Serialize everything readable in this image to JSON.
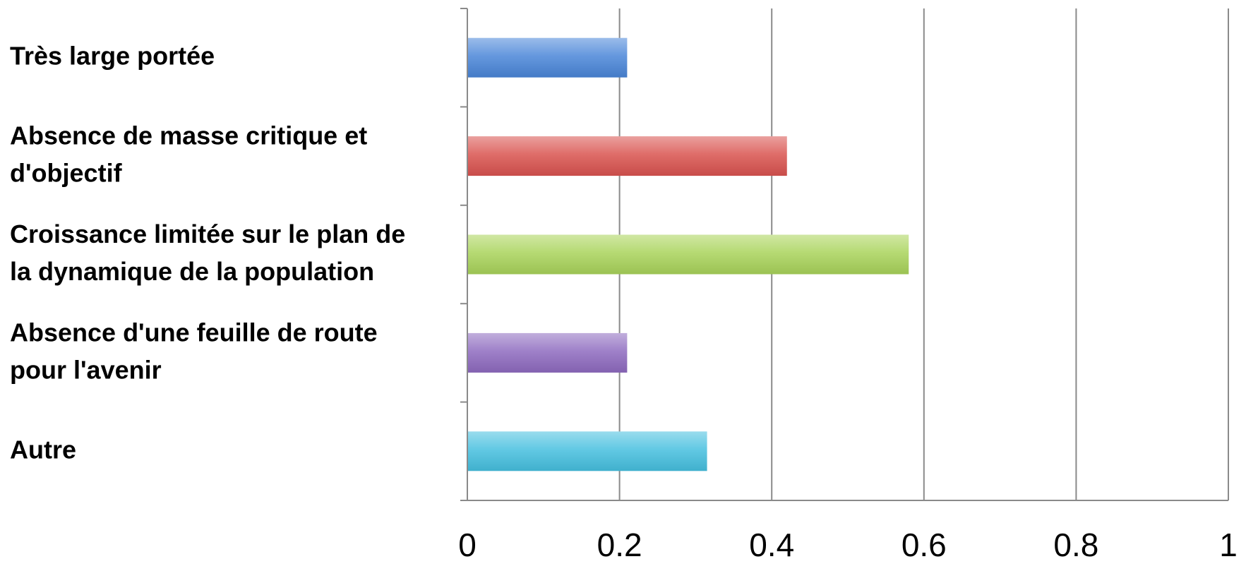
{
  "chart_data": {
    "type": "bar",
    "orientation": "horizontal",
    "title": "",
    "xlabel": "",
    "ylabel": "",
    "categories": [
      "Très large portée",
      "Absence de masse critique et d'objectif",
      "Croissance limitée sur le plan de la dynamique de la population",
      "Absence d'une feuille de route pour l'avenir",
      "Autre"
    ],
    "category_lines": [
      [
        "Très large portée"
      ],
      [
        "Absence de masse critique et",
        "d'objectif"
      ],
      [
        "Croissance limitée sur le plan de",
        "la dynamique de la population"
      ],
      [
        "Absence d'une feuille de route",
        "pour l'avenir"
      ],
      [
        "Autre"
      ]
    ],
    "values": [
      0.21,
      0.42,
      0.58,
      0.21,
      0.315
    ],
    "colors": [
      "#4a86d8",
      "#d9534f",
      "#a9d35a",
      "#8e6bbf",
      "#46bfdf"
    ],
    "xlim": [
      0,
      1
    ],
    "xticks": [
      0,
      0.2,
      0.4,
      0.6,
      0.8,
      1
    ],
    "xtick_labels": [
      "0",
      "0.2",
      "0.4",
      "0.6",
      "0.8",
      "1"
    ],
    "grid": true,
    "legend": "none"
  }
}
